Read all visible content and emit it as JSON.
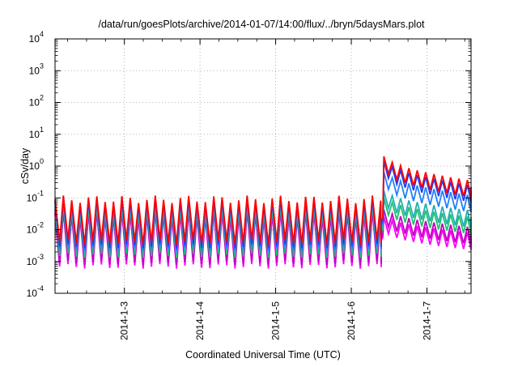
{
  "chart_data": {
    "type": "line",
    "title": "/data/run/goesPlots/archive/2014-01-07/14:00/flux/../bryn/5daysMars.plot",
    "xlabel": "Coordinated Universal Time (UTC)",
    "ylabel": "cSv/day",
    "yscale": "log",
    "ylim": [
      0.0001,
      10000
    ],
    "xlim": [
      "2014-01-02T02:00",
      "2014-01-07T14:00"
    ],
    "grid": true,
    "legend": "none",
    "x_ticks": [
      "2014-1-3",
      "2014-1-4",
      "2014-1-5",
      "2014-1-6",
      "2014-1-7"
    ],
    "y_ticks": [
      {
        "base": "10",
        "exp": "-4"
      },
      {
        "base": "10",
        "exp": "-3"
      },
      {
        "base": "10",
        "exp": "-2"
      },
      {
        "base": "10",
        "exp": "-1"
      },
      {
        "base": "10",
        "exp": "0"
      },
      {
        "base": "10",
        "exp": "1"
      },
      {
        "base": "10",
        "exp": "2"
      },
      {
        "base": "10",
        "exp": "3"
      },
      {
        "base": "10",
        "exp": "4"
      }
    ],
    "event": {
      "start": "2014-01-06T10:00",
      "description": "step increase in dose rate"
    },
    "series": [
      {
        "color": "#ff0000",
        "hi_before": 0.09,
        "lo_before": 0.004,
        "peak_after": 2.5,
        "end_after": 0.35
      },
      {
        "color": "#1e3cff",
        "hi_before": 0.08,
        "lo_before": 0.003,
        "peak_after": 1.8,
        "end_after": 0.25
      },
      {
        "color": "#2080ff",
        "hi_before": 0.07,
        "lo_before": 0.0025,
        "peak_after": 0.8,
        "end_after": 0.12
      },
      {
        "color": "#20b0b0",
        "hi_before": 0.055,
        "lo_before": 0.002,
        "peak_after": 0.2,
        "end_after": 0.04
      },
      {
        "color": "#20c070",
        "hi_before": 0.045,
        "lo_before": 0.0015,
        "peak_after": 0.12,
        "end_after": 0.025
      },
      {
        "color": "#c000c0",
        "hi_before": 0.035,
        "lo_before": 0.0009,
        "peak_after": 0.05,
        "end_after": 0.012
      },
      {
        "color": "#ff00ff",
        "hi_before": 0.03,
        "lo_before": 0.0007,
        "peak_after": 0.03,
        "end_after": 0.008
      }
    ]
  }
}
